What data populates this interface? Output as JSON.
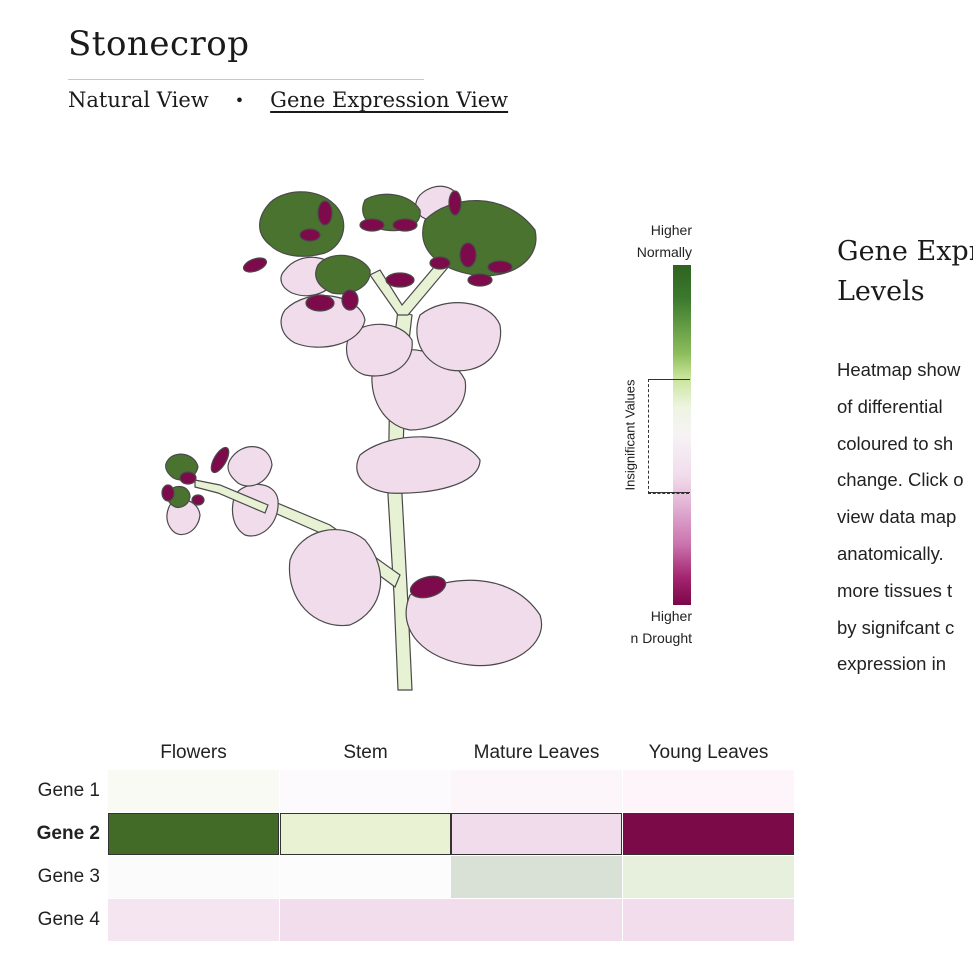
{
  "page": {
    "title": "Stonecrop"
  },
  "nav": {
    "items": [
      {
        "label": "Natural View",
        "active": false
      },
      {
        "label": "Gene Expression View",
        "active": true
      }
    ],
    "separator": "•"
  },
  "legend": {
    "top_label_line1": "Higher",
    "top_label_line2": "Normally",
    "bottom_label_line1": "Higher",
    "bottom_label_line2": "n Drought",
    "insignificant_label": "Insignificant Values",
    "colors": {
      "high_normal": "#2e6320",
      "neutral": "#f6f3f5",
      "high_drought": "#7a0747"
    }
  },
  "side_panel": {
    "heading_line1": "Gene Expr",
    "heading_line2": "Levels",
    "body_lines": [
      "Heatmap show",
      "of differential",
      "coloured to sh",
      "change. Click o",
      "view data map",
      "anatomically.",
      "more tissues t",
      "by signifcant c",
      "expression in"
    ]
  },
  "heatmap": {
    "columns": [
      "Flowers",
      "Stem",
      "Mature Leaves",
      "Young Leaves"
    ],
    "selected_row": 1,
    "rows": [
      {
        "label": "Gene 1",
        "colors": [
          "#f8faf3",
          "#fcfafc",
          "#fcf6fa",
          "#fdf5fa"
        ]
      },
      {
        "label": "Gene 2",
        "colors": [
          "#436b28",
          "#e9f3d4",
          "#f1dcec",
          "#7b0a48"
        ]
      },
      {
        "label": "Gene 3",
        "colors": [
          "#fbfbfb",
          "#fcfcfc",
          "#d9e1d6",
          "#e6f0dc"
        ]
      },
      {
        "label": "Gene 4",
        "colors": [
          "#f4e5f0",
          "#f1ddeb",
          "#f1ddeb",
          "#f1ddeb"
        ]
      }
    ]
  },
  "plant": {
    "colors": {
      "leaf": "#f1dcec",
      "stem": "#e7f1d3",
      "flower_green": "#4a7330",
      "flower_magenta": "#7d0a4a",
      "outline": "#4a4a4a"
    }
  }
}
